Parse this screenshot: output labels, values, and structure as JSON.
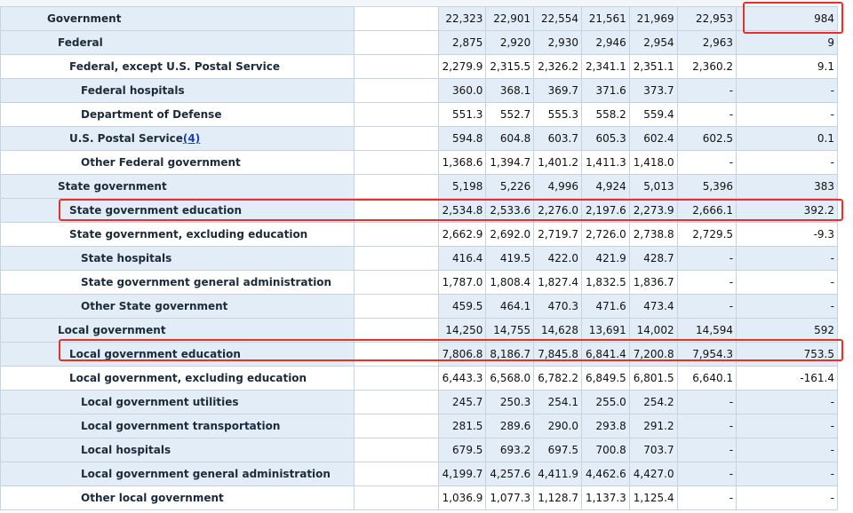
{
  "table": {
    "rows": [
      {
        "label": "Government",
        "footnote": "",
        "values": [
          "22,323",
          "22,901",
          "22,554",
          "21,561",
          "21,969",
          "22,953",
          "984"
        ]
      },
      {
        "label": "Federal",
        "footnote": "",
        "values": [
          "2,875",
          "2,920",
          "2,930",
          "2,946",
          "2,954",
          "2,963",
          "9"
        ]
      },
      {
        "label": "Federal, except U.S. Postal Service",
        "footnote": "",
        "values": [
          "2,279.9",
          "2,315.5",
          "2,326.2",
          "2,341.1",
          "2,351.1",
          "2,360.2",
          "9.1"
        ]
      },
      {
        "label": "Federal hospitals",
        "footnote": "",
        "values": [
          "360.0",
          "368.1",
          "369.7",
          "371.6",
          "373.7",
          "-",
          "-"
        ]
      },
      {
        "label": "Department of Defense",
        "footnote": "",
        "values": [
          "551.3",
          "552.7",
          "555.3",
          "558.2",
          "559.4",
          "-",
          "-"
        ]
      },
      {
        "label": "U.S. Postal Service",
        "footnote": "(4)",
        "values": [
          "594.8",
          "604.8",
          "603.7",
          "605.3",
          "602.4",
          "602.5",
          "0.1"
        ]
      },
      {
        "label": "Other Federal government",
        "footnote": "",
        "values": [
          "1,368.6",
          "1,394.7",
          "1,401.2",
          "1,411.3",
          "1,418.0",
          "-",
          "-"
        ]
      },
      {
        "label": "State government",
        "footnote": "",
        "values": [
          "5,198",
          "5,226",
          "4,996",
          "4,924",
          "5,013",
          "5,396",
          "383"
        ]
      },
      {
        "label": "State government education",
        "footnote": "",
        "values": [
          "2,534.8",
          "2,533.6",
          "2,276.0",
          "2,197.6",
          "2,273.9",
          "2,666.1",
          "392.2"
        ]
      },
      {
        "label": "State government, excluding education",
        "footnote": "",
        "values": [
          "2,662.9",
          "2,692.0",
          "2,719.7",
          "2,726.0",
          "2,738.8",
          "2,729.5",
          "-9.3"
        ]
      },
      {
        "label": "State hospitals",
        "footnote": "",
        "values": [
          "416.4",
          "419.5",
          "422.0",
          "421.9",
          "428.7",
          "-",
          "-"
        ]
      },
      {
        "label": "State government general administration",
        "footnote": "",
        "values": [
          "1,787.0",
          "1,808.4",
          "1,827.4",
          "1,832.5",
          "1,836.7",
          "-",
          "-"
        ]
      },
      {
        "label": "Other State government",
        "footnote": "",
        "values": [
          "459.5",
          "464.1",
          "470.3",
          "471.6",
          "473.4",
          "-",
          "-"
        ]
      },
      {
        "label": "Local government",
        "footnote": "",
        "values": [
          "14,250",
          "14,755",
          "14,628",
          "13,691",
          "14,002",
          "14,594",
          "592"
        ]
      },
      {
        "label": "Local government education",
        "footnote": "",
        "values": [
          "7,806.8",
          "8,186.7",
          "7,845.8",
          "6,841.4",
          "7,200.8",
          "7,954.3",
          "753.5"
        ]
      },
      {
        "label": "Local government, excluding education",
        "footnote": "",
        "values": [
          "6,443.3",
          "6,568.0",
          "6,782.2",
          "6,849.5",
          "6,801.5",
          "6,640.1",
          "-161.4"
        ]
      },
      {
        "label": "Local government utilities",
        "footnote": "",
        "values": [
          "245.7",
          "250.3",
          "254.1",
          "255.0",
          "254.2",
          "-",
          "-"
        ]
      },
      {
        "label": "Local government transportation",
        "footnote": "",
        "values": [
          "281.5",
          "289.6",
          "290.0",
          "293.8",
          "291.2",
          "-",
          "-"
        ]
      },
      {
        "label": "Local hospitals",
        "footnote": "",
        "values": [
          "679.5",
          "693.2",
          "697.5",
          "700.8",
          "703.7",
          "-",
          "-"
        ]
      },
      {
        "label": "Local government general administration",
        "footnote": "",
        "values": [
          "4,199.7",
          "4,257.6",
          "4,411.9",
          "4,462.6",
          "4,427.0",
          "-",
          "-"
        ]
      },
      {
        "label": "Other local government",
        "footnote": "",
        "values": [
          "1,036.9",
          "1,077.3",
          "1,128.7",
          "1,137.3",
          "1,125.4",
          "-",
          "-"
        ]
      }
    ]
  },
  "highlight_color": "#e8302a",
  "band_color": "#e3edf8"
}
